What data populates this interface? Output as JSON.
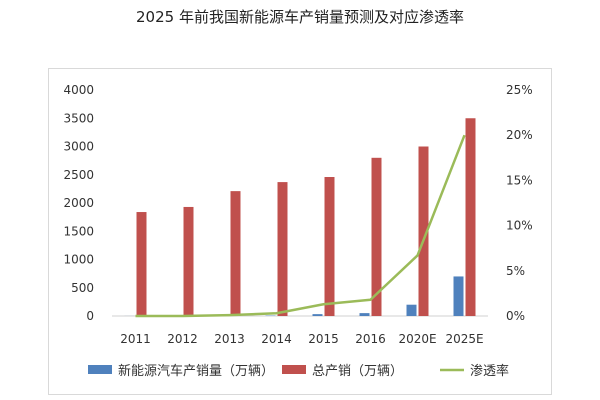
{
  "chart_data": {
    "type": "bar",
    "title": "2025 年前我国新能源车产销量预测及对应渗透率",
    "categories": [
      "2011",
      "2012",
      "2013",
      "2014",
      "2015",
      "2016",
      "2020E",
      "2025E"
    ],
    "series": [
      {
        "name": "新能源汽车产销量（万辆）",
        "type": "bar",
        "axis": "left",
        "color": "#4f81bd",
        "values": [
          1,
          1,
          2,
          7,
          33,
          51,
          200,
          700
        ]
      },
      {
        "name": "总产销（万辆）",
        "type": "bar",
        "axis": "left",
        "color": "#c0504d",
        "values": [
          1840,
          1930,
          2210,
          2370,
          2460,
          2800,
          3000,
          3500
        ]
      },
      {
        "name": "渗透率",
        "type": "line",
        "axis": "right",
        "color": "#9bbb59",
        "values": [
          0.0,
          0.0,
          0.1,
          0.3,
          1.3,
          1.8,
          6.7,
          20.0
        ]
      }
    ],
    "y_left": {
      "min": 0,
      "max": 4000,
      "ticks": [
        "0",
        "500",
        "1000",
        "1500",
        "2000",
        "2500",
        "3000",
        "3500",
        "4000"
      ]
    },
    "y_right": {
      "min": 0,
      "max": 25,
      "ticks": [
        "0%",
        "5%",
        "10%",
        "15%",
        "20%",
        "25%"
      ]
    },
    "grid": false,
    "legend": "bottom"
  }
}
